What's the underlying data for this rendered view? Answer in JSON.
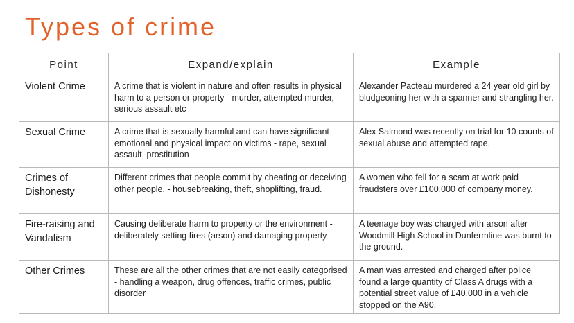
{
  "title": "Types of crime",
  "table": {
    "headers": {
      "point": "Point",
      "explain": "Expand/explain",
      "example": "Example"
    },
    "rows": [
      {
        "point": "Violent Crime",
        "explain": "A crime that is violent in nature and often results in physical harm to a person or property - murder, attempted murder, serious assault etc",
        "example": "Alexander Pacteau murdered a 24 year old girl by bludgeoning her with a spanner and strangling her."
      },
      {
        "point": "Sexual Crime",
        "explain": "A crime that is sexually harmful and can have significant emotional and physical impact on victims - rape, sexual assault, prostitution",
        "example": "Alex Salmond was recently on trial for 10 counts of sexual abuse and attempted rape."
      },
      {
        "point": "Crimes of Dishonesty",
        "explain": "Different crimes that people commit by cheating or deceiving other people. - housebreaking, theft, shoplifting, fraud.",
        "example": "A women who fell for a scam at work paid fraudsters over £100,000 of company money."
      },
      {
        "point": "Fire-raising and Vandalism",
        "explain": "Causing deliberate harm to property or the environment - deliberately setting fires (arson) and damaging property",
        "example": "A teenage boy was charged with arson after Woodmill High School in Dunfermline was burnt to the ground."
      },
      {
        "point": "Other Crimes",
        "explain": "These are all the other crimes that are not easily categorised - handling a weapon, drug offences, traffic crimes, public disorder",
        "example": "A man was arrested and charged after police found a large quantity of Class A drugs with a potential street value of £40,000 in a vehicle stopped on the A90."
      }
    ]
  },
  "colors": {
    "title": "#e2622c",
    "border": "#b9b9b9",
    "text": "#222222",
    "background": "#ffffff"
  }
}
